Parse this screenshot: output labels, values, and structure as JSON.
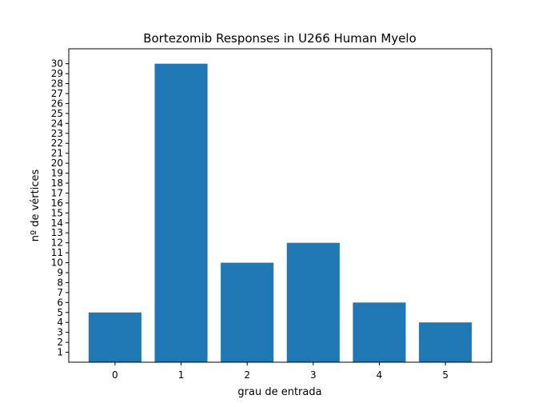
{
  "chart_data": {
    "type": "bar",
    "title": "Bortezomib Responses in U266 Human Myelo",
    "xlabel": "grau de entrada",
    "ylabel": "nº de vértices",
    "categories": [
      "0",
      "1",
      "2",
      "3",
      "4",
      "5"
    ],
    "values": [
      5,
      30,
      10,
      12,
      6,
      4
    ],
    "yticks": [
      1,
      2,
      3,
      4,
      5,
      6,
      7,
      8,
      9,
      10,
      11,
      12,
      13,
      14,
      15,
      16,
      17,
      18,
      19,
      20,
      21,
      22,
      23,
      24,
      25,
      26,
      27,
      28,
      29,
      30
    ],
    "xlim": [
      -0.7,
      5.7
    ],
    "ylim": [
      0,
      31.5
    ],
    "grid": false,
    "bar_color": "#1f77b4"
  }
}
